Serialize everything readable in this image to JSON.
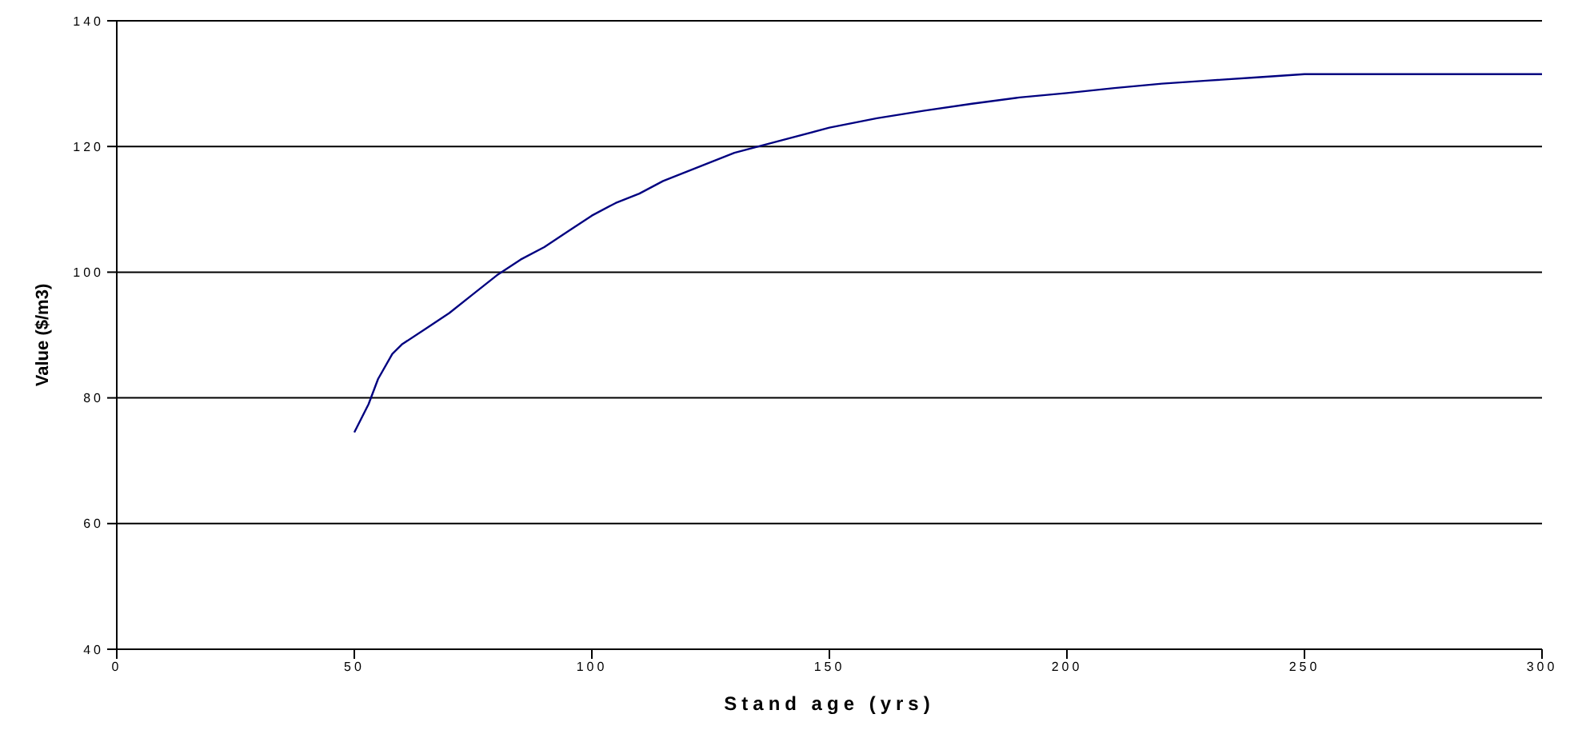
{
  "chart_data": {
    "type": "line",
    "xlabel": "Stand age (yrs)",
    "ylabel": "Value ($/m3)",
    "xlim": [
      0,
      300
    ],
    "xticks": [
      0,
      50,
      100,
      150,
      200,
      250,
      300
    ],
    "ylim": [
      40,
      140
    ],
    "yticks": [
      40,
      60,
      80,
      100,
      120,
      140
    ],
    "grid": "y",
    "marker": "none",
    "line_style": "solid",
    "series": [
      {
        "color": "#000080",
        "x": [
          50,
          53,
          55,
          58,
          60,
          65,
          70,
          75,
          80,
          85,
          90,
          95,
          100,
          105,
          110,
          115,
          120,
          130,
          140,
          150,
          160,
          170,
          180,
          190,
          200,
          210,
          220,
          230,
          240,
          250,
          260,
          300
        ],
        "values": [
          74.5,
          79,
          83,
          87,
          88.5,
          91,
          93.5,
          96.5,
          99.5,
          102,
          104,
          106.5,
          109,
          111,
          112.5,
          114.5,
          116,
          119,
          121,
          123,
          124.5,
          125.7,
          126.8,
          127.8,
          128.5,
          129.3,
          130,
          130.5,
          131,
          131.5,
          131.5,
          131.5
        ]
      }
    ]
  }
}
